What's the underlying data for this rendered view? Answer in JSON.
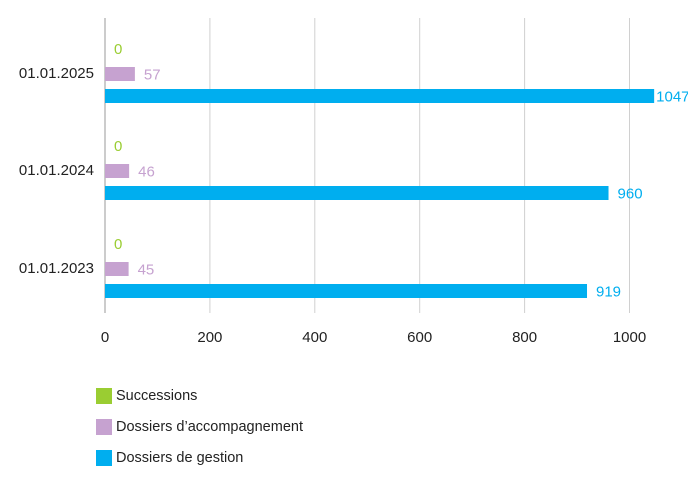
{
  "chart_data": {
    "type": "bar",
    "orientation": "horizontal",
    "categories": [
      "01.01.2025",
      "01.01.2024",
      "01.01.2023"
    ],
    "series": [
      {
        "name": "Successions",
        "values": [
          0,
          0,
          0
        ],
        "color": "#9ACD32"
      },
      {
        "name": "Dossiers d’accompagnement",
        "values": [
          57,
          46,
          45
        ],
        "color": "#C6A2D0"
      },
      {
        "name": "Dossiers de gestion",
        "values": [
          1047,
          960,
          919
        ],
        "color": "#00AEEF"
      }
    ],
    "xlim": [
      0,
      1000
    ],
    "xticks": [
      0,
      200,
      400,
      600,
      800,
      1000
    ],
    "grid": true,
    "legend_position": "bottom-left",
    "title": "",
    "xlabel": "",
    "ylabel": ""
  }
}
